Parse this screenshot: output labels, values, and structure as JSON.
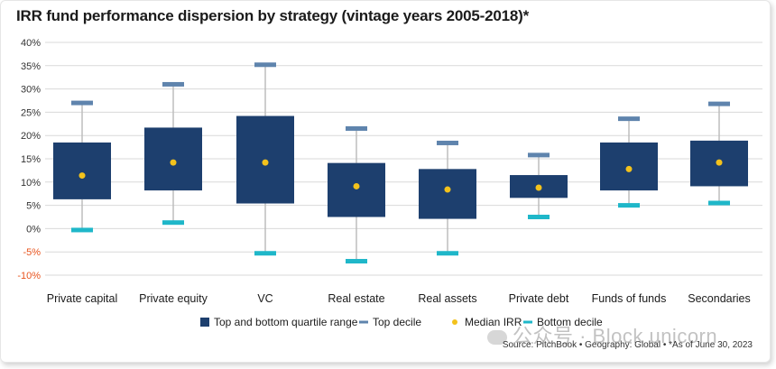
{
  "chart_data": {
    "type": "box",
    "title": "IRR fund performance dispersion by strategy (vintage years 2005-2018)*",
    "ylim": [
      -10,
      40
    ],
    "y_ticks": [
      "40%",
      "35%",
      "30%",
      "25%",
      "20%",
      "15%",
      "10%",
      "5%",
      "0%",
      "-5%",
      "-10%"
    ],
    "y_tick_values": [
      40,
      35,
      30,
      25,
      20,
      15,
      10,
      5,
      0,
      -5,
      -10
    ],
    "categories": [
      "Private capital",
      "Private equity",
      "VC",
      "Real estate",
      "Real assets",
      "Private debt",
      "Funds of funds",
      "Secondaries"
    ],
    "series": {
      "top_decile": [
        27.0,
        31.0,
        35.2,
        21.5,
        18.4,
        15.8,
        23.6,
        26.8
      ],
      "q3": [
        18.5,
        21.7,
        24.2,
        14.1,
        12.8,
        11.5,
        18.5,
        18.9
      ],
      "median": [
        11.4,
        14.2,
        14.2,
        9.1,
        8.4,
        8.8,
        12.8,
        14.2
      ],
      "q1": [
        6.3,
        8.2,
        5.4,
        2.5,
        2.1,
        6.6,
        8.2,
        9.1
      ],
      "bottom_decile": [
        -0.3,
        1.3,
        -5.3,
        -7.0,
        -5.3,
        2.5,
        5.0,
        5.5
      ]
    },
    "legend": [
      {
        "label": "Top and bottom quartile range",
        "key": "range"
      },
      {
        "label": "Top decile",
        "key": "top"
      },
      {
        "label": "Median IRR",
        "key": "median"
      },
      {
        "label": "Bottom decile",
        "key": "bottom"
      }
    ],
    "colors": {
      "box": "#1d3f6e",
      "top_decile": "#5f84ad",
      "median": "#f3c21c",
      "bottom_decile": "#1fb7c9",
      "whisker": "#bdbdbd",
      "grid": "#d9d9d9",
      "axis_text": "#333333",
      "negative_tick": "#e8541e"
    }
  },
  "source": "Source: PitchBook  •  Geography: Global  •  *As of June 30, 2023",
  "watermark": "公众号 · Block unicorn"
}
